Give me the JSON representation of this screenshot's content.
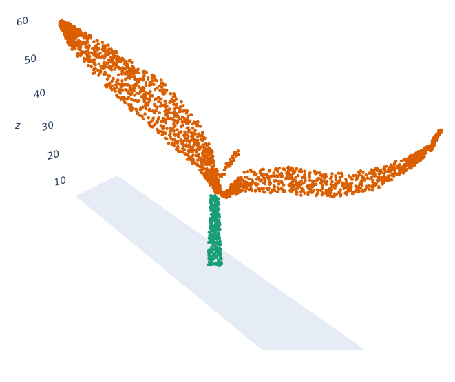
{
  "chart_data": {
    "type": "scatter",
    "subtype": "3d-point-cloud",
    "title": "",
    "zlabel": "z",
    "zticks": [
      "10",
      "20",
      "30",
      "40",
      "50",
      "60"
    ],
    "zlim": [
      5,
      62
    ],
    "grid": false,
    "legend": "none",
    "floor_color": "#e5ecf6",
    "series": [
      {
        "color": "#d95f02",
        "parts": [
          {
            "part": "left-leaf",
            "z_range": [
              10,
              61
            ],
            "approx_points": 1200
          },
          {
            "part": "right-leaf",
            "z_range": [
              10,
              22
            ],
            "approx_points": 900
          }
        ]
      },
      {
        "color": "#1b9e77",
        "parts": [
          {
            "part": "stem",
            "z_range": [
              0,
              10
            ],
            "approx_points": 300
          }
        ]
      }
    ]
  }
}
